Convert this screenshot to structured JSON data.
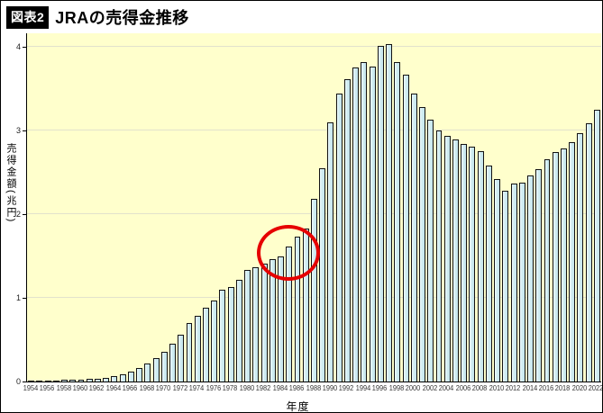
{
  "figure": {
    "tag": "図表2",
    "title": "JRAの売得金推移"
  },
  "chart_data": {
    "type": "bar",
    "title": "JRAの売得金推移",
    "xlabel": "年度",
    "ylabel": "売得金額(兆円)",
    "ylim": [
      0,
      4.16
    ],
    "yticks": [
      0,
      1,
      2,
      3,
      4
    ],
    "x_label_step": 2,
    "grid": true,
    "legend": "none",
    "plot_bg_color": "#FFFFCC",
    "bar_fill_color": "#D2EDF2",
    "bar_border_color": "#141414",
    "annotation_color": "#E60000",
    "categories": [
      1954,
      1955,
      1956,
      1957,
      1958,
      1959,
      1960,
      1961,
      1962,
      1963,
      1964,
      1965,
      1966,
      1967,
      1968,
      1969,
      1970,
      1971,
      1972,
      1973,
      1974,
      1975,
      1976,
      1977,
      1978,
      1979,
      1980,
      1981,
      1982,
      1983,
      1984,
      1985,
      1986,
      1987,
      1988,
      1989,
      1990,
      1991,
      1992,
      1993,
      1994,
      1995,
      1996,
      1997,
      1998,
      1999,
      2000,
      2001,
      2002,
      2003,
      2004,
      2005,
      2006,
      2007,
      2008,
      2009,
      2010,
      2011,
      2012,
      2013,
      2014,
      2015,
      2016,
      2017,
      2018,
      2019,
      2020,
      2021,
      2022
    ],
    "values": [
      0.008,
      0.01,
      0.013,
      0.016,
      0.019,
      0.022,
      0.026,
      0.03,
      0.035,
      0.045,
      0.06,
      0.085,
      0.115,
      0.16,
      0.21,
      0.28,
      0.36,
      0.45,
      0.56,
      0.7,
      0.78,
      0.88,
      0.97,
      1.1,
      1.13,
      1.22,
      1.33,
      1.37,
      1.41,
      1.46,
      1.49,
      1.61,
      1.73,
      1.83,
      2.18,
      2.55,
      3.1,
      3.44,
      3.61,
      3.75,
      3.82,
      3.76,
      4.01,
      4.03,
      3.82,
      3.67,
      3.44,
      3.28,
      3.13,
      3.0,
      2.93,
      2.89,
      2.84,
      2.81,
      2.75,
      2.58,
      2.42,
      2.28,
      2.36,
      2.38,
      2.46,
      2.54,
      2.65,
      2.74,
      2.78,
      2.86,
      2.97,
      3.09,
      3.25
    ],
    "annotation": {
      "shape": "ellipse",
      "color": "#E60000",
      "year_start": 1984,
      "year_end": 1986,
      "meaning": "highlight-circle"
    }
  }
}
